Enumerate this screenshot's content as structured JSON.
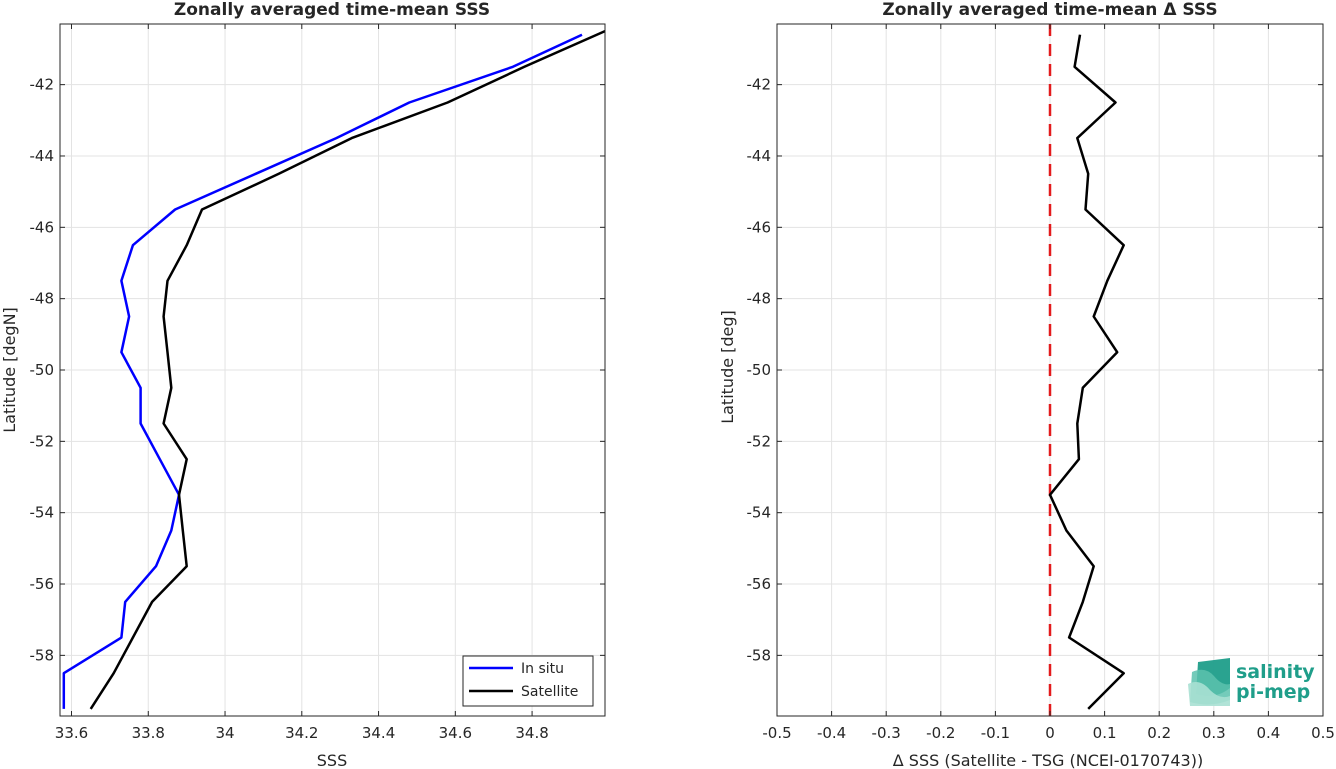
{
  "chart_data": [
    {
      "type": "line",
      "title": "Zonally averaged time-mean SSS",
      "xlabel": "SSS",
      "ylabel": "Latitude [degN]",
      "xlim": [
        33.57,
        34.99
      ],
      "ylim": [
        -59.7,
        -40.3
      ],
      "xticks": [
        33.6,
        33.8,
        34,
        34.2,
        34.4,
        34.6,
        34.8
      ],
      "xtick_labels": [
        "33.6",
        "33.8",
        "34",
        "34.2",
        "34.4",
        "34.6",
        "34.8"
      ],
      "yticks": [
        -58,
        -56,
        -54,
        -52,
        -50,
        -48,
        -46,
        -44,
        -42
      ],
      "ytick_labels": [
        "-58",
        "-56",
        "-54",
        "-52",
        "-50",
        "-48",
        "-46",
        "-44",
        "-42"
      ],
      "grid": true,
      "legend_position": "bottom-right",
      "series": [
        {
          "name": "In situ",
          "color": "#0000ff",
          "x": [
            33.58,
            33.58,
            33.73,
            33.74,
            33.82,
            33.86,
            33.88,
            33.83,
            33.78,
            33.78,
            33.73,
            33.75,
            33.73,
            33.76,
            33.87,
            34.08,
            34.29,
            34.48,
            34.75,
            34.93
          ],
          "y": [
            -59.5,
            -58.5,
            -57.5,
            -56.5,
            -55.5,
            -54.5,
            -53.5,
            -52.5,
            -51.5,
            -50.5,
            -49.5,
            -48.5,
            -47.5,
            -46.5,
            -45.5,
            -44.5,
            -43.5,
            -42.5,
            -41.5,
            -40.6
          ]
        },
        {
          "name": "Satellite",
          "color": "#000000",
          "x": [
            33.65,
            33.71,
            33.76,
            33.81,
            33.9,
            33.89,
            33.88,
            33.9,
            33.84,
            33.86,
            33.85,
            33.84,
            33.85,
            33.9,
            33.94,
            34.14,
            34.33,
            34.58,
            34.78,
            34.99
          ],
          "y": [
            -59.5,
            -58.5,
            -57.5,
            -56.5,
            -55.5,
            -54.5,
            -53.5,
            -52.5,
            -51.5,
            -50.5,
            -49.5,
            -48.5,
            -47.5,
            -46.5,
            -45.5,
            -44.5,
            -43.5,
            -42.5,
            -41.5,
            -40.5
          ]
        }
      ]
    },
    {
      "type": "line",
      "title": "Zonally averaged time-mean Δ SSS",
      "xlabel": "Δ SSS (Satellite - TSG (NCEI-0170743))",
      "ylabel": "Latitude [deg]",
      "xlim": [
        -0.5,
        0.5
      ],
      "ylim": [
        -59.7,
        -40.3
      ],
      "xticks": [
        -0.5,
        -0.4,
        -0.3,
        -0.2,
        -0.1,
        0,
        0.1,
        0.2,
        0.3,
        0.4,
        0.5
      ],
      "xtick_labels": [
        "-0.5",
        "-0.4",
        "-0.3",
        "-0.2",
        "-0.1",
        "0",
        "0.1",
        "0.2",
        "0.3",
        "0.4",
        "0.5"
      ],
      "yticks": [
        -58,
        -56,
        -54,
        -52,
        -50,
        -48,
        -46,
        -44,
        -42
      ],
      "ytick_labels": [
        "-58",
        "-56",
        "-54",
        "-52",
        "-50",
        "-48",
        "-46",
        "-44",
        "-42"
      ],
      "grid": true,
      "reference_line": {
        "x": 0,
        "color": "#e31a1c",
        "style": "dashed"
      },
      "series": [
        {
          "color": "#000000",
          "x": [
            0.07,
            0.135,
            0.035,
            0.06,
            0.08,
            0.03,
            0.0,
            0.053,
            0.05,
            0.06,
            0.123,
            0.08,
            0.105,
            0.135,
            0.065,
            0.07,
            0.05,
            0.12,
            0.045,
            0.055
          ],
          "y": [
            -59.5,
            -58.5,
            -57.5,
            -56.5,
            -55.5,
            -54.5,
            -53.5,
            -52.5,
            -51.5,
            -50.5,
            -49.5,
            -48.5,
            -47.5,
            -46.5,
            -45.5,
            -44.5,
            -43.5,
            -42.5,
            -41.5,
            -40.6
          ]
        }
      ]
    }
  ],
  "logo": {
    "line1": "salinity",
    "line2": "pi-mep",
    "color": "#1f9e8a"
  }
}
